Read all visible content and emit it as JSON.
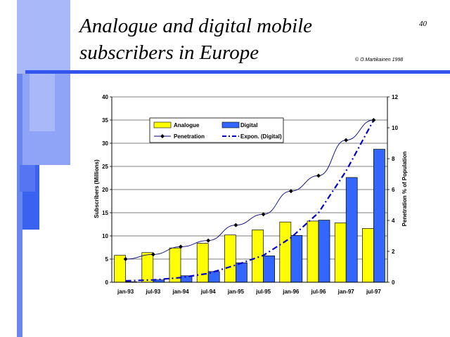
{
  "slide": {
    "title_line1": "Analogue and digital mobile",
    "title_line2": "subscribers in Europe",
    "page_number": "40",
    "copyright": "© O.Martikainen 1998"
  },
  "colors": {
    "analogue": "#ffff00",
    "digital": "#3366ff",
    "penetration": "#000080",
    "expon": "#0000cc",
    "deco_light": "#a8b8f8",
    "deco_mid": "#6a86f0",
    "deco_dark": "#3a62f0",
    "rule": "#3355ee"
  },
  "chart_data": {
    "type": "bar",
    "categories": [
      "jan-93",
      "jul-93",
      "jan-94",
      "jul-94",
      "jan-95",
      "jul-95",
      "jan-96",
      "jul-96",
      "jan-97",
      "jul-97"
    ],
    "series": [
      {
        "name": "Analogue",
        "type": "bar",
        "axis": "left",
        "values": [
          5.8,
          6.4,
          7.4,
          8.4,
          10.2,
          11.3,
          13.0,
          13.2,
          12.8,
          11.6
        ]
      },
      {
        "name": "Digital",
        "type": "bar",
        "axis": "left",
        "values": [
          0.1,
          0.5,
          1.4,
          2.3,
          4.2,
          5.7,
          10.1,
          13.4,
          22.6,
          28.7
        ]
      },
      {
        "name": "Penetration",
        "type": "line",
        "axis": "right",
        "values": [
          1.5,
          1.8,
          2.3,
          2.7,
          3.7,
          4.4,
          5.9,
          6.9,
          9.2,
          10.5
        ]
      },
      {
        "name": "Expon. (Digital)",
        "type": "trendline",
        "axis": "left",
        "values": [
          0.3,
          0.5,
          1.0,
          1.9,
          3.7,
          5.8,
          9.6,
          15.0,
          24.0,
          35.0
        ]
      }
    ],
    "ylabel": "Subscribers (Millions)",
    "y2label": "Penetration % of Population",
    "ylim": [
      0,
      40
    ],
    "yticks": [
      0,
      5,
      10,
      15,
      20,
      25,
      30,
      35,
      40
    ],
    "y2lim": [
      0,
      12
    ],
    "y2ticks": [
      0,
      2,
      4,
      6,
      8,
      10,
      12
    ],
    "grid": true,
    "legend_position": "top-left inside",
    "legend": {
      "analogue": "Analogue",
      "digital": "Digital",
      "penetration": "Penetration",
      "expon": "Expon. (Digital)"
    }
  }
}
